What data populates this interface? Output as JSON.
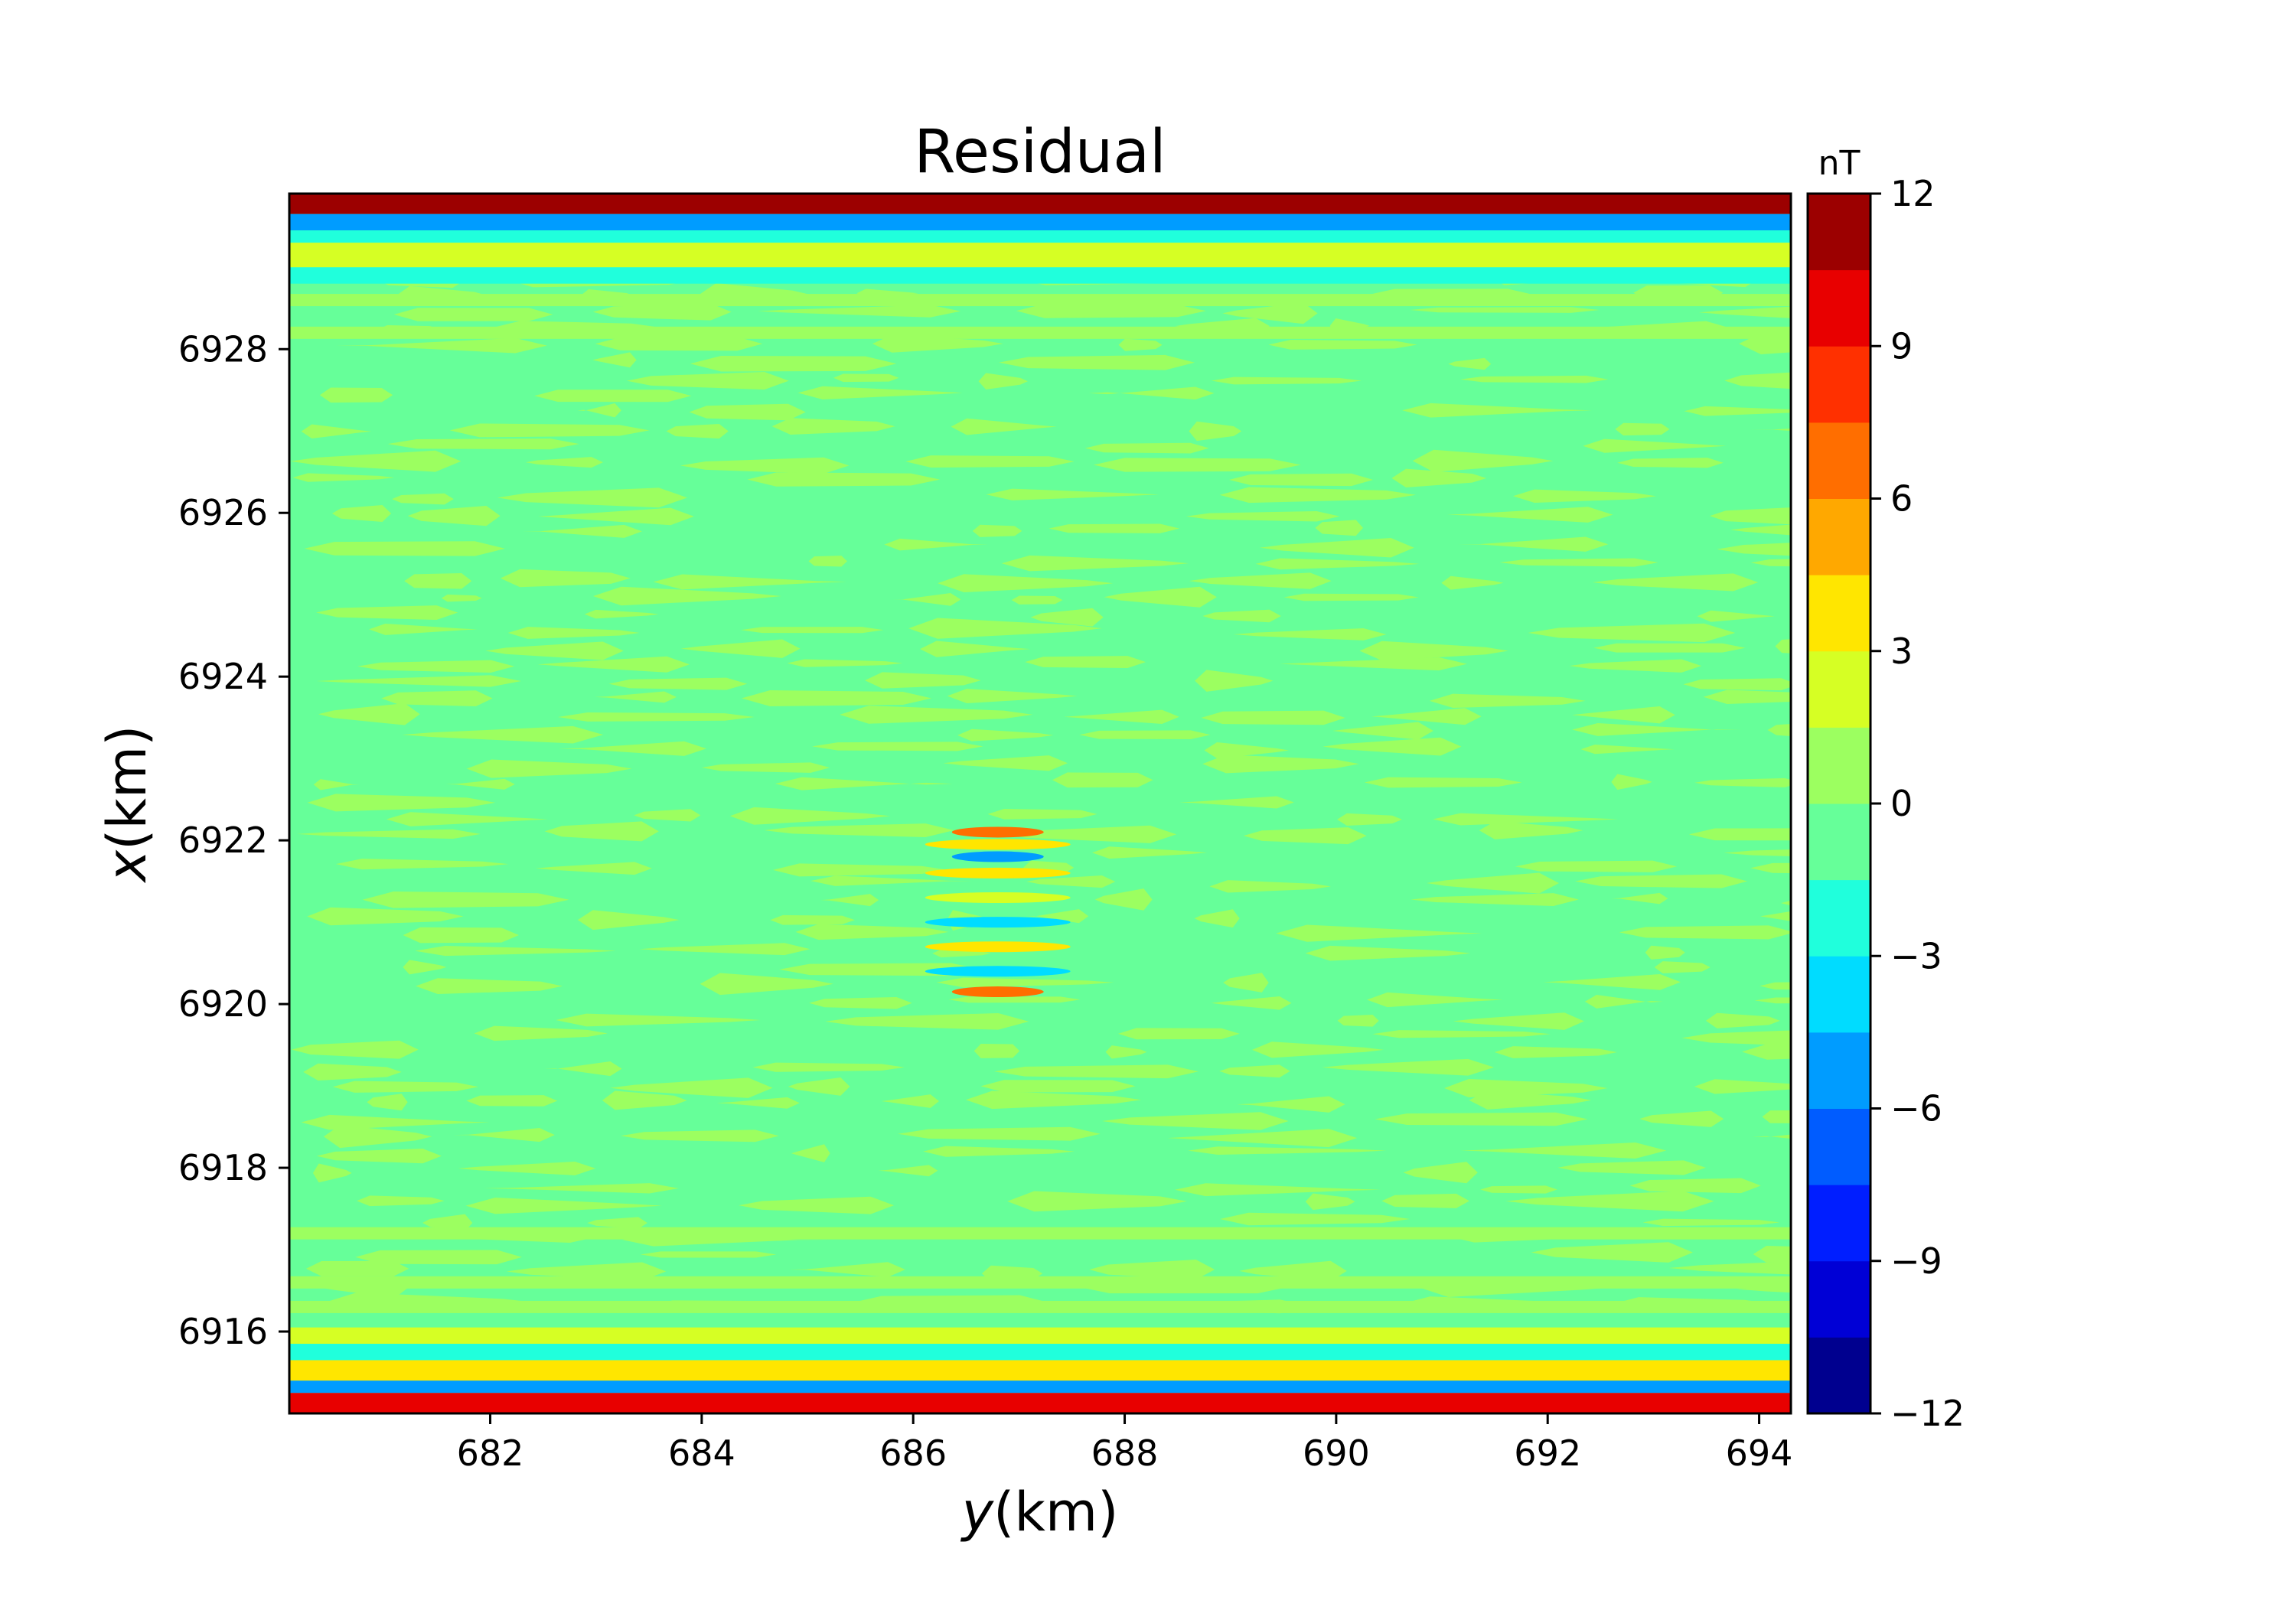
{
  "chart_data": {
    "type": "heatmap",
    "title": "Residual",
    "xlabel_var": "y",
    "xlabel_unit": "(km)",
    "ylabel_var": "x",
    "ylabel_unit": "(km)",
    "xlim": [
      680.1,
      694.3
    ],
    "ylim": [
      6915.0,
      6929.9
    ],
    "xticks": [
      682,
      684,
      686,
      688,
      690,
      692,
      694
    ],
    "yticks": [
      6916,
      6918,
      6920,
      6922,
      6924,
      6926,
      6928
    ],
    "colorbar": {
      "unit": "nT",
      "min": -12,
      "max": 12,
      "step": 1.5,
      "ticks": [
        -12,
        -9,
        -6,
        -3,
        0,
        3,
        6,
        9,
        12
      ],
      "tick_labels": [
        "−12",
        "−9",
        "−6",
        "−3",
        "0",
        "3",
        "6",
        "9",
        "12"
      ],
      "colors": [
        "#00008f",
        "#0000d6",
        "#001eff",
        "#005cff",
        "#009cff",
        "#00dcff",
        "#20ffdc",
        "#66ff99",
        "#9cff60",
        "#d6ff24",
        "#ffe600",
        "#ffa800",
        "#ff6e00",
        "#ff3000",
        "#e80000",
        "#9c0000"
      ]
    },
    "description_levels": {
      "background": -0.5,
      "stripe": 0.8
    },
    "bands": [
      {
        "x_from": 6929.65,
        "x_to": 6929.9,
        "value": 10.5
      },
      {
        "x_from": 6929.45,
        "x_to": 6929.65,
        "value": -6.0
      },
      {
        "x_from": 6929.3,
        "x_to": 6929.45,
        "value": -2.0
      },
      {
        "x_from": 6929.0,
        "x_to": 6929.3,
        "value": 2.5
      },
      {
        "x_from": 6928.8,
        "x_to": 6929.0,
        "value": -2.0
      },
      {
        "x_from": 6915.85,
        "x_to": 6916.05,
        "value": 2.5
      },
      {
        "x_from": 6915.65,
        "x_to": 6915.85,
        "value": -2.0
      },
      {
        "x_from": 6915.4,
        "x_to": 6915.65,
        "value": 3.5
      },
      {
        "x_from": 6915.25,
        "x_to": 6915.4,
        "value": -6.0
      },
      {
        "x_from": 6915.0,
        "x_to": 6915.25,
        "value": 10.0
      }
    ],
    "anomaly": {
      "y_center": 686.8,
      "rows": [
        {
          "x": 6922.1,
          "value": 7.0
        },
        {
          "x": 6921.95,
          "value": 3.5
        },
        {
          "x": 6921.8,
          "value": -6.0
        },
        {
          "x": 6921.6,
          "value": 3.5
        },
        {
          "x": 6921.3,
          "value": 2.0
        },
        {
          "x": 6921.0,
          "value": -4.5
        },
        {
          "x": 6920.7,
          "value": 3.5
        },
        {
          "x": 6920.4,
          "value": -3.5
        },
        {
          "x": 6920.15,
          "value": 7.0
        }
      ]
    }
  }
}
